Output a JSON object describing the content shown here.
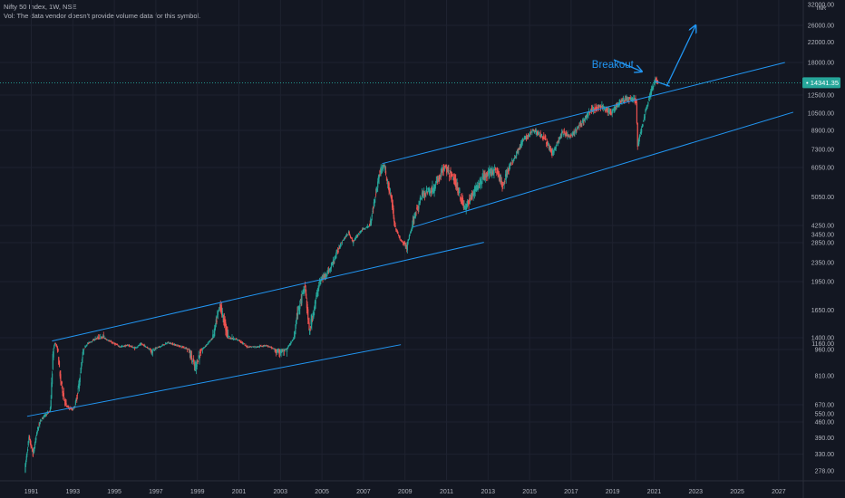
{
  "header": {
    "title": "Nifty 50 Index, 1W, NSE",
    "vol_note": "Vol: The data vendor doesn't provide volume data for this symbol."
  },
  "price_axis": {
    "currency": "INR",
    "last_price_label": "14341.35",
    "accent_color": "#26a69a"
  },
  "annotation": {
    "label": "Breakout",
    "color": "#2196f3"
  },
  "chart_data": {
    "type": "candlestick",
    "title": "Nifty 50 Index, 1W, NSE",
    "xlabel": "",
    "ylabel": "",
    "y_scale": "log",
    "ylim": [
      250,
      32000
    ],
    "xlim": [
      1990.5,
      2027.5
    ],
    "y_ticks": [
      {
        "value": 278,
        "label": "278.00"
      },
      {
        "value": 330,
        "label": "330.00"
      },
      {
        "value": 390,
        "label": "390.00"
      },
      {
        "value": 460,
        "label": "460.00"
      },
      {
        "value": 550,
        "label": "550.00"
      },
      {
        "value": 670,
        "label": "670.00"
      },
      {
        "value": 810,
        "label": "810.00"
      },
      {
        "value": 960,
        "label": "960.00"
      },
      {
        "value": 1160,
        "label": "1160.00"
      },
      {
        "value": 1400,
        "label": "1400.00"
      },
      {
        "value": 1650,
        "label": "1650.00"
      },
      {
        "value": 1950,
        "label": "1950.00"
      },
      {
        "value": 2350,
        "label": "2350.00"
      },
      {
        "value": 2850,
        "label": "2850.00"
      },
      {
        "value": 3450,
        "label": "3450.00"
      },
      {
        "value": 4250,
        "label": "4250.00"
      },
      {
        "value": 5050,
        "label": "5050.00"
      },
      {
        "value": 6050,
        "label": "6050.00"
      },
      {
        "value": 7300,
        "label": "7300.00"
      },
      {
        "value": 8900,
        "label": "8900.00"
      },
      {
        "value": 10500,
        "label": "10500.00"
      },
      {
        "value": 12500,
        "label": "12500.00"
      },
      {
        "value": 18000,
        "label": "18000.00"
      },
      {
        "value": 22000,
        "label": "22000.00"
      },
      {
        "value": 26000,
        "label": "26000.00"
      },
      {
        "value": 32000,
        "label": "32000.00"
      }
    ],
    "x_ticks": [
      "1991",
      "1993",
      "1995",
      "1997",
      "1999",
      "2001",
      "2003",
      "2005",
      "2007",
      "2009",
      "2011",
      "2013",
      "2015",
      "2017",
      "2019",
      "2021",
      "2023",
      "2025",
      "2027"
    ],
    "last_price": 14341.35,
    "colors": {
      "up": "#26a69a",
      "down": "#ef5350",
      "trendline": "#2196f3"
    },
    "price_path": [
      [
        1990.7,
        280
      ],
      [
        1990.9,
        390
      ],
      [
        1991.1,
        330
      ],
      [
        1991.3,
        420
      ],
      [
        1991.6,
        520
      ],
      [
        1991.9,
        580
      ],
      [
        1992.15,
        1200
      ],
      [
        1992.4,
        800
      ],
      [
        1992.7,
        650
      ],
      [
        1993.0,
        600
      ],
      [
        1993.3,
        760
      ],
      [
        1993.7,
        1150
      ],
      [
        1994.1,
        1350
      ],
      [
        1994.5,
        1400
      ],
      [
        1994.9,
        1200
      ],
      [
        1995.3,
        1050
      ],
      [
        1995.7,
        1100
      ],
      [
        1996.0,
        1000
      ],
      [
        1996.3,
        1150
      ],
      [
        1996.8,
        950
      ],
      [
        1997.2,
        1050
      ],
      [
        1997.6,
        1200
      ],
      [
        1998.0,
        1100
      ],
      [
        1998.5,
        1000
      ],
      [
        1998.9,
        850
      ],
      [
        1999.3,
        1000
      ],
      [
        1999.7,
        1350
      ],
      [
        2000.1,
        1700
      ],
      [
        2000.5,
        1400
      ],
      [
        2001.0,
        1300
      ],
      [
        2001.4,
        1050
      ],
      [
        2001.9,
        1050
      ],
      [
        2002.3,
        1100
      ],
      [
        2002.8,
        950
      ],
      [
        2003.3,
        960
      ],
      [
        2003.8,
        1600
      ],
      [
        2004.2,
        1900
      ],
      [
        2004.4,
        1450
      ],
      [
        2004.9,
        1950
      ],
      [
        2005.4,
        2200
      ],
      [
        2005.9,
        2800
      ],
      [
        2006.3,
        3600
      ],
      [
        2006.5,
        2900
      ],
      [
        2006.9,
        3800
      ],
      [
        2007.3,
        4200
      ],
      [
        2007.8,
        5900
      ],
      [
        2008.0,
        6200
      ],
      [
        2008.4,
        4800
      ],
      [
        2008.8,
        3000
      ],
      [
        2009.1,
        2700
      ],
      [
        2009.4,
        4400
      ],
      [
        2009.9,
        5200
      ],
      [
        2010.4,
        5300
      ],
      [
        2010.9,
        6100
      ],
      [
        2011.4,
        5600
      ],
      [
        2011.9,
        4700
      ],
      [
        2012.4,
        5300
      ],
      [
        2012.9,
        5800
      ],
      [
        2013.4,
        6000
      ],
      [
        2013.7,
        5400
      ],
      [
        2014.2,
        6500
      ],
      [
        2014.7,
        8000
      ],
      [
        2015.2,
        8900
      ],
      [
        2015.7,
        8300
      ],
      [
        2016.1,
        7000
      ],
      [
        2016.6,
        8700
      ],
      [
        2017.0,
        8300
      ],
      [
        2017.6,
        9800
      ],
      [
        2018.0,
        10900
      ],
      [
        2018.5,
        11200
      ],
      [
        2018.9,
        10500
      ],
      [
        2019.4,
        11800
      ],
      [
        2019.9,
        12100
      ],
      [
        2020.15,
        11800
      ],
      [
        2020.22,
        7600
      ],
      [
        2020.6,
        10800
      ],
      [
        2020.95,
        13900
      ],
      [
        2021.1,
        14900
      ],
      [
        2021.2,
        14341.35
      ]
    ],
    "trendlines": [
      {
        "name": "upper-channel-top",
        "from": [
          2007.9,
          6300
        ],
        "to": [
          2027.3,
          18000
        ]
      },
      {
        "name": "upper-channel-bottom",
        "from": [
          2009.4,
          4100
        ],
        "to": [
          2027.7,
          10600
        ]
      },
      {
        "name": "lower-channel-top",
        "from": [
          1992.0,
          1260
        ],
        "to": [
          2012.8,
          2870
        ]
      },
      {
        "name": "lower-channel-bottom",
        "from": [
          1990.8,
          520
        ],
        "to": [
          2008.8,
          1120
        ]
      },
      {
        "name": "breakout-arrow-up",
        "from": [
          2021.6,
          13800
        ],
        "to": [
          2023.0,
          26000
        ]
      },
      {
        "name": "breakout-arrow-dip",
        "from": [
          2021.05,
          14600
        ],
        "to": [
          2021.75,
          13800
        ]
      }
    ],
    "annotations": [
      {
        "text": "Breakout",
        "x": 2018.0,
        "y": 17500
      }
    ]
  }
}
